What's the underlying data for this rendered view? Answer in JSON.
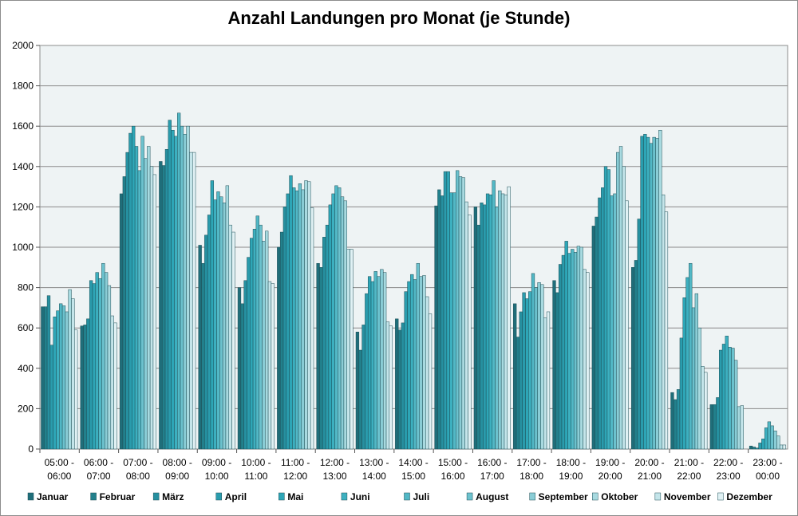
{
  "chart_data": {
    "type": "bar",
    "title": "Anzahl Landungen pro Monat (je Stunde)",
    "xlabel": "",
    "ylabel": "",
    "ylim": [
      0,
      2000
    ],
    "yticks": [
      0,
      200,
      400,
      600,
      800,
      1000,
      1200,
      1400,
      1600,
      1800,
      2000
    ],
    "grid": true,
    "legend_position": "bottom",
    "categories": [
      [
        "05:00 -",
        "06:00"
      ],
      [
        "06:00 -",
        "07:00"
      ],
      [
        "07:00 -",
        "08:00"
      ],
      [
        "08:00 -",
        "09:00"
      ],
      [
        "09:00 -",
        "10:00"
      ],
      [
        "10:00 -",
        "11:00"
      ],
      [
        "11:00 -",
        "12:00"
      ],
      [
        "12:00 -",
        "13:00"
      ],
      [
        "13:00 -",
        "14:00"
      ],
      [
        "14:00 -",
        "15:00"
      ],
      [
        "15:00 -",
        "16:00"
      ],
      [
        "16:00 -",
        "17:00"
      ],
      [
        "17:00 -",
        "18:00"
      ],
      [
        "18:00 -",
        "19:00"
      ],
      [
        "19:00 -",
        "20:00"
      ],
      [
        "20:00 -",
        "21:00"
      ],
      [
        "21:00 -",
        "22:00"
      ],
      [
        "22:00 -",
        "23:00"
      ],
      [
        "23:00 -",
        "00:00"
      ]
    ],
    "series": [
      {
        "name": "Januar",
        "color": "#1f6e7a",
        "values": [
          705,
          610,
          1265,
          1425,
          1010,
          800,
          1000,
          920,
          580,
          645,
          1205,
          1200,
          720,
          835,
          1105,
          900,
          280,
          220,
          15
        ]
      },
      {
        "name": "Februar",
        "color": "#22808c",
        "values": [
          705,
          615,
          1350,
          1405,
          920,
          720,
          1075,
          900,
          490,
          590,
          1285,
          1110,
          555,
          775,
          1150,
          935,
          245,
          220,
          10
        ]
      },
      {
        "name": "März",
        "color": "#2690a0",
        "values": [
          760,
          645,
          1470,
          1485,
          1060,
          835,
          1200,
          1050,
          615,
          625,
          1255,
          1220,
          680,
          915,
          1245,
          1140,
          295,
          255,
          5
        ]
      },
      {
        "name": "April",
        "color": "#2a9cad",
        "values": [
          515,
          835,
          1565,
          1630,
          1160,
          950,
          1265,
          1110,
          770,
          780,
          1375,
          1210,
          775,
          960,
          1295,
          1550,
          550,
          490,
          30
        ]
      },
      {
        "name": "Mai",
        "color": "#2ea6b7",
        "values": [
          655,
          820,
          1600,
          1580,
          1330,
          1045,
          1355,
          1210,
          855,
          830,
          1375,
          1265,
          745,
          1030,
          1400,
          1560,
          750,
          520,
          50
        ]
      },
      {
        "name": "Juni",
        "color": "#3db0c0",
        "values": [
          685,
          875,
          1500,
          1550,
          1235,
          1090,
          1295,
          1265,
          830,
          865,
          1270,
          1260,
          780,
          970,
          1385,
          1545,
          850,
          560,
          105
        ]
      },
      {
        "name": "Juli",
        "color": "#52b8c6",
        "values": [
          720,
          845,
          1380,
          1665,
          1275,
          1155,
          1280,
          1305,
          880,
          840,
          1270,
          1330,
          870,
          990,
          1255,
          1515,
          920,
          505,
          135
        ]
      },
      {
        "name": "August",
        "color": "#6cc2ce",
        "values": [
          710,
          920,
          1550,
          1600,
          1250,
          1110,
          1315,
          1295,
          855,
          920,
          1380,
          1200,
          800,
          975,
          1265,
          1545,
          700,
          500,
          115
        ]
      },
      {
        "name": "September",
        "color": "#8acdd6",
        "values": [
          680,
          875,
          1440,
          1560,
          1220,
          1030,
          1285,
          1250,
          890,
          855,
          1350,
          1280,
          825,
          1005,
          1470,
          1540,
          770,
          440,
          90
        ]
      },
      {
        "name": "Oktober",
        "color": "#a8dae0",
        "values": [
          790,
          810,
          1500,
          1600,
          1305,
          1080,
          1330,
          1230,
          875,
          860,
          1345,
          1265,
          815,
          1000,
          1500,
          1580,
          600,
          210,
          65
        ]
      },
      {
        "name": "November",
        "color": "#c4e5ea",
        "values": [
          745,
          660,
          1400,
          1470,
          1110,
          830,
          1325,
          990,
          630,
          755,
          1225,
          1260,
          650,
          890,
          1400,
          1260,
          410,
          215,
          20
        ]
      },
      {
        "name": "Dezember",
        "color": "#e0f1f4",
        "values": [
          590,
          625,
          1360,
          1470,
          1075,
          820,
          1195,
          990,
          610,
          670,
          1160,
          1300,
          680,
          875,
          1230,
          1175,
          380,
          0,
          20
        ]
      }
    ]
  }
}
